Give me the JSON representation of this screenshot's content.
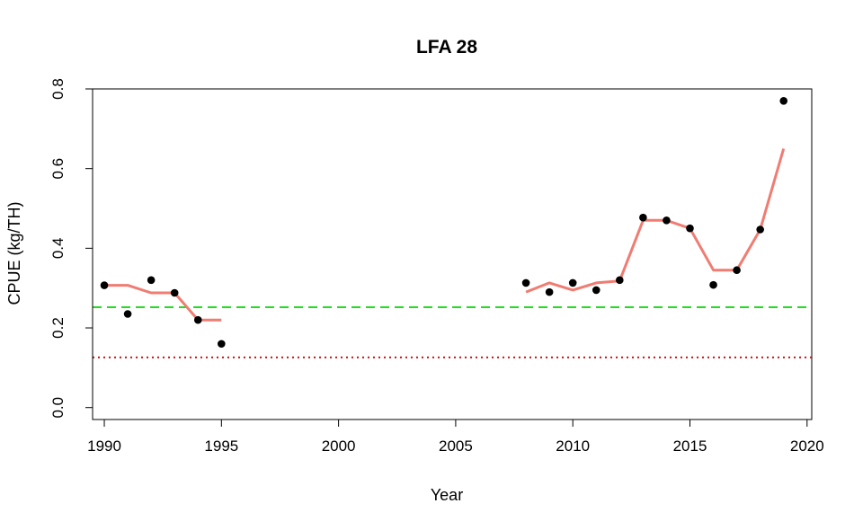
{
  "chart_data": {
    "type": "scatter",
    "title": "LFA 28",
    "xlabel": "Year",
    "ylabel": "CPUE (kg/TH)",
    "xlim": [
      1989.5,
      2020.2
    ],
    "ylim": [
      -0.03,
      0.8
    ],
    "x_ticks": [
      1990,
      1995,
      2000,
      2005,
      2010,
      2015,
      2020
    ],
    "y_ticks": [
      0.0,
      0.2,
      0.4,
      0.6,
      0.8
    ],
    "x_tick_labels": [
      "1990",
      "1995",
      "2000",
      "2005",
      "2010",
      "2015",
      "2020"
    ],
    "y_tick_labels": [
      "0.0",
      "0.2",
      "0.4",
      "0.6",
      "0.8"
    ],
    "grid": false,
    "points": [
      {
        "x": 1990,
        "y": 0.307
      },
      {
        "x": 1991,
        "y": 0.235
      },
      {
        "x": 1992,
        "y": 0.32
      },
      {
        "x": 1993,
        "y": 0.288
      },
      {
        "x": 1994,
        "y": 0.22
      },
      {
        "x": 1995,
        "y": 0.16
      },
      {
        "x": 2008,
        "y": 0.313
      },
      {
        "x": 2009,
        "y": 0.29
      },
      {
        "x": 2010,
        "y": 0.313
      },
      {
        "x": 2011,
        "y": 0.295
      },
      {
        "x": 2012,
        "y": 0.32
      },
      {
        "x": 2013,
        "y": 0.477
      },
      {
        "x": 2014,
        "y": 0.47
      },
      {
        "x": 2015,
        "y": 0.45
      },
      {
        "x": 2016,
        "y": 0.308
      },
      {
        "x": 2017,
        "y": 0.345
      },
      {
        "x": 2018,
        "y": 0.447
      },
      {
        "x": 2019,
        "y": 0.77
      }
    ],
    "running_mean": {
      "color": "#f07c72",
      "segments": [
        [
          {
            "x": 1990,
            "y": 0.307
          },
          {
            "x": 1991,
            "y": 0.307
          },
          {
            "x": 1992,
            "y": 0.288
          },
          {
            "x": 1993,
            "y": 0.288
          },
          {
            "x": 1994,
            "y": 0.22
          },
          {
            "x": 1995,
            "y": 0.22
          }
        ],
        [
          {
            "x": 2008,
            "y": 0.29
          },
          {
            "x": 2009,
            "y": 0.313
          },
          {
            "x": 2010,
            "y": 0.295
          },
          {
            "x": 2011,
            "y": 0.313
          },
          {
            "x": 2012,
            "y": 0.318
          },
          {
            "x": 2013,
            "y": 0.47
          },
          {
            "x": 2014,
            "y": 0.47
          },
          {
            "x": 2015,
            "y": 0.45
          },
          {
            "x": 2016,
            "y": 0.345
          },
          {
            "x": 2017,
            "y": 0.345
          },
          {
            "x": 2018,
            "y": 0.447
          },
          {
            "x": 2019,
            "y": 0.65
          }
        ]
      ]
    },
    "reference_lines": [
      {
        "y": 0.252,
        "style": "dashed",
        "color": "#22dd22"
      },
      {
        "y": 0.126,
        "style": "dotted",
        "color": "#cc1111"
      }
    ],
    "point_color": "#000000"
  }
}
